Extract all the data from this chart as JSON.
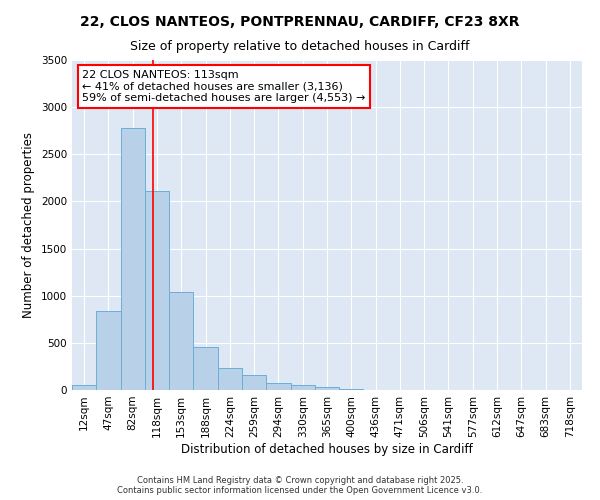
{
  "title1": "22, CLOS NANTEOS, PONTPRENNAU, CARDIFF, CF23 8XR",
  "title2": "Size of property relative to detached houses in Cardiff",
  "xlabel": "Distribution of detached houses by size in Cardiff",
  "ylabel": "Number of detached properties",
  "categories": [
    "12sqm",
    "47sqm",
    "82sqm",
    "118sqm",
    "153sqm",
    "188sqm",
    "224sqm",
    "259sqm",
    "294sqm",
    "330sqm",
    "365sqm",
    "400sqm",
    "436sqm",
    "471sqm",
    "506sqm",
    "541sqm",
    "577sqm",
    "612sqm",
    "647sqm",
    "683sqm",
    "718sqm"
  ],
  "values": [
    55,
    840,
    2775,
    2110,
    1040,
    460,
    235,
    160,
    75,
    48,
    30,
    15,
    5,
    2,
    1,
    0,
    0,
    0,
    0,
    0,
    0
  ],
  "bar_color": "#b8d0e8",
  "bar_edge_color": "#6baed6",
  "vline_color": "red",
  "vline_x": 2.82,
  "annotation_line1": "22 CLOS NANTEOS: 113sqm",
  "annotation_line2": "← 41% of detached houses are smaller (3,136)",
  "annotation_line3": "59% of semi-detached houses are larger (4,553) →",
  "ylim": [
    0,
    3500
  ],
  "yticks": [
    0,
    500,
    1000,
    1500,
    2000,
    2500,
    3000,
    3500
  ],
  "background_color": "#dde8f4",
  "grid_color": "#ffffff",
  "footer": "Contains HM Land Registry data © Crown copyright and database right 2025.\nContains public sector information licensed under the Open Government Licence v3.0.",
  "title1_fontsize": 10,
  "title2_fontsize": 9,
  "tick_fontsize": 7.5,
  "ylabel_fontsize": 8.5,
  "xlabel_fontsize": 8.5,
  "annot_fontsize": 8,
  "footer_fontsize": 6
}
